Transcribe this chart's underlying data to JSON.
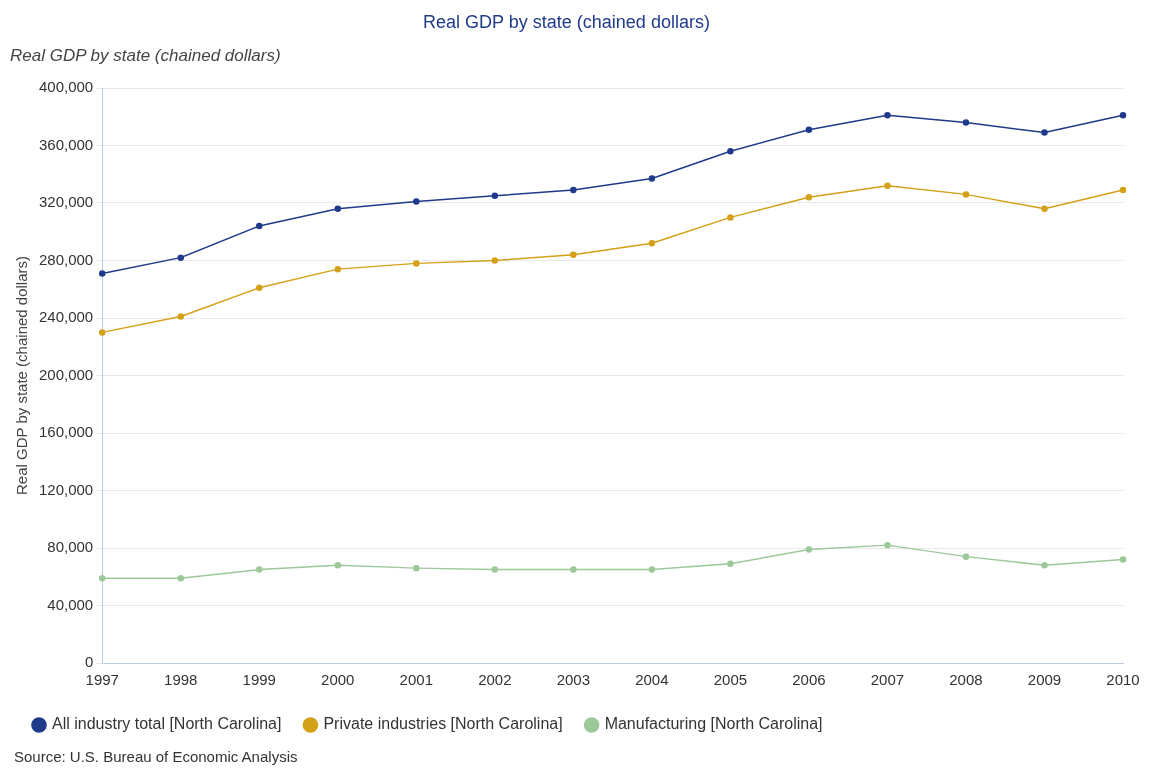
{
  "chart_data": {
    "type": "line",
    "title": "Real GDP by state (chained dollars)",
    "subtitle": "Real GDP by state (chained dollars)",
    "ylabel": "Real GDP by state (chained dollars)",
    "categories": [
      "1997",
      "1998",
      "1999",
      "2000",
      "2001",
      "2002",
      "2003",
      "2004",
      "2005",
      "2006",
      "2007",
      "2008",
      "2009",
      "2010"
    ],
    "series": [
      {
        "name": "All industry total [North Carolina]",
        "color": "#1f3a8a",
        "values": [
          271000,
          282000,
          304000,
          316000,
          321000,
          325000,
          329000,
          337000,
          356000,
          371000,
          381000,
          376000,
          369000,
          381000
        ]
      },
      {
        "name": "Private industries [North Carolina]",
        "color": "#d4a017",
        "values": [
          230000,
          241000,
          261000,
          274000,
          278000,
          280000,
          284000,
          292000,
          310000,
          324000,
          332000,
          326000,
          316000,
          329000
        ]
      },
      {
        "name": "Manufacturing [North Carolina]",
        "color": "#9dc89a",
        "values": [
          59000,
          59000,
          65000,
          68000,
          66000,
          65000,
          65000,
          65000,
          69000,
          79000,
          82000,
          74000,
          68000,
          72000
        ]
      }
    ],
    "ylim": [
      0,
      400000
    ],
    "yticks": [
      {
        "value": 0,
        "label": "0"
      },
      {
        "value": 40000,
        "label": "40,000"
      },
      {
        "value": 80000,
        "label": "80,000"
      },
      {
        "value": 120000,
        "label": "120,000"
      },
      {
        "value": 160000,
        "label": "160,000"
      },
      {
        "value": 200000,
        "label": "200,000"
      },
      {
        "value": 240000,
        "label": "240,000"
      },
      {
        "value": 280000,
        "label": "280,000"
      },
      {
        "value": 320000,
        "label": "320,000"
      },
      {
        "value": 360000,
        "label": "360,000"
      },
      {
        "value": 400000,
        "label": "400,000"
      }
    ],
    "grid": "y",
    "legend": "bottom",
    "marker": "circle",
    "line_style": "solid",
    "annotations": [
      "Source: U.S. Bureau of Economic Analysis"
    ]
  }
}
